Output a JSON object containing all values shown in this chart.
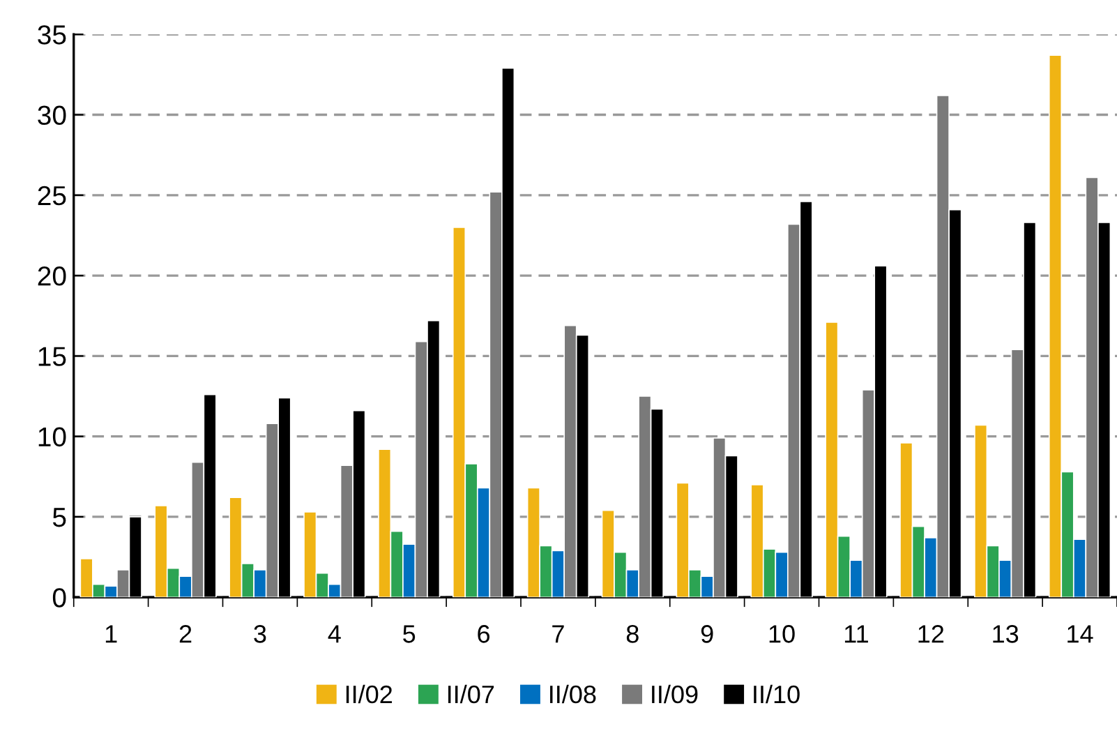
{
  "chart_data": {
    "type": "bar",
    "categories": [
      "1",
      "2",
      "3",
      "4",
      "5",
      "6",
      "7",
      "8",
      "9",
      "10",
      "11",
      "12",
      "13",
      "14"
    ],
    "series": [
      {
        "name": "II/02",
        "color": "#f0b414",
        "values": [
          2.4,
          5.7,
          6.2,
          5.3,
          9.2,
          23.0,
          6.8,
          5.4,
          7.1,
          7.0,
          17.1,
          9.6,
          10.7,
          33.7
        ]
      },
      {
        "name": "II/07",
        "color": "#2ca453",
        "values": [
          0.8,
          1.8,
          2.1,
          1.5,
          4.1,
          8.3,
          3.2,
          2.8,
          1.7,
          3.0,
          3.8,
          4.4,
          3.2,
          7.8
        ]
      },
      {
        "name": "II/08",
        "color": "#0070c0",
        "values": [
          0.7,
          1.3,
          1.7,
          0.8,
          3.3,
          6.8,
          2.9,
          1.7,
          1.3,
          2.8,
          2.3,
          3.7,
          2.3,
          3.6
        ]
      },
      {
        "name": "II/09",
        "color": "#7a7a7a",
        "values": [
          1.7,
          8.4,
          10.8,
          8.2,
          15.9,
          25.2,
          16.9,
          12.5,
          9.9,
          23.2,
          12.9,
          31.2,
          15.4,
          26.1
        ]
      },
      {
        "name": "II/10",
        "color": "#000000",
        "values": [
          5.0,
          12.6,
          12.4,
          11.6,
          17.2,
          32.9,
          16.3,
          11.7,
          8.8,
          24.6,
          20.6,
          24.1,
          23.3,
          23.3
        ]
      }
    ],
    "ylim": [
      0,
      35
    ],
    "yticks": [
      0,
      5,
      10,
      15,
      20,
      25,
      30,
      35
    ],
    "grid": "y",
    "legend": "bottom"
  }
}
